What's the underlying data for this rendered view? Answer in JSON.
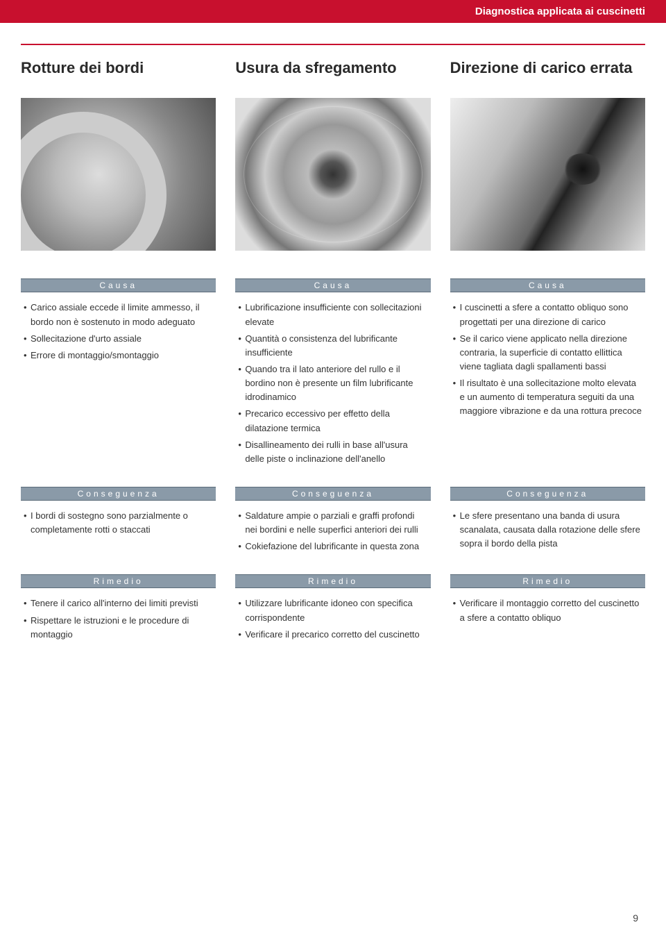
{
  "header": {
    "title": "Diagnostica applicata ai cuscinetti"
  },
  "heads": {
    "c1": "Rotture dei bordi",
    "c2": "Usura da sfregamento",
    "c3": "Direzione di carico errata"
  },
  "labels": {
    "causa": "Causa",
    "conseguenza": "Conseguenza",
    "rimedio": "Rimedio"
  },
  "col1": {
    "causa": [
      "Carico assiale eccede il limite ammesso, il bordo non è sostenuto in modo adeguato",
      "Sollecitazione d'urto assiale",
      "Errore di montaggio/smontaggio"
    ],
    "conseguenza": [
      "I bordi di sostegno sono parzialmente o completamente rotti o staccati"
    ],
    "rimedio": [
      "Tenere il carico all'interno dei limiti previsti",
      "Rispettare le istruzioni e le procedure di montaggio"
    ]
  },
  "col2": {
    "causa": [
      "Lubrificazione insufficiente con sollecitazioni elevate",
      "Quantità o consistenza del lubrificante insufficiente",
      "Quando tra il lato anteriore del rullo e il bordino non è presente un film lubrificante idrodinamico",
      "Precarico eccessivo per effetto della dilatazione termica",
      "Disallineamento dei rulli in base all'usura delle piste o inclinazione dell'anello"
    ],
    "conseguenza": [
      "Saldature ampie o parziali e graffi profondi nei bordini e nelle superfici anteriori dei rulli",
      "Cokiefazione del lubrificante in questa zona"
    ],
    "rimedio": [
      "Utilizzare lubrificante idoneo con specifica corrispondente",
      "Verificare il precarico corretto del cuscinetto"
    ]
  },
  "col3": {
    "causa": [
      "I cuscinetti a sfere a contatto obliquo sono progettati per una direzione di carico",
      "Se il carico viene applicato nella direzione contraria, la superficie di contatto ellittica viene tagliata dagli spallamenti bassi",
      "Il risultato è una sollecitazione molto elevata e un aumento di temperatura seguiti da una maggiore vibrazione e da una rottura precoce"
    ],
    "conseguenza": [
      "Le sfere presentano una banda di usura scanalata, causata dalla rotazione delle sfere sopra il bordo della pista"
    ],
    "rimedio": [
      "Verificare il montaggio corretto del cuscinetto a sfere a contatto obliquo"
    ]
  },
  "page_number": "9",
  "colors": {
    "brand_red": "#c8102e",
    "band_bg": "#8a9aa8",
    "band_border": "#5a6a78",
    "text": "#333333",
    "page_bg": "#ffffff"
  },
  "typography": {
    "header_fontsize": 15,
    "colhead_fontsize": 22,
    "section_title_fontsize": 12,
    "body_fontsize": 13,
    "section_title_letterspacing": 4
  }
}
